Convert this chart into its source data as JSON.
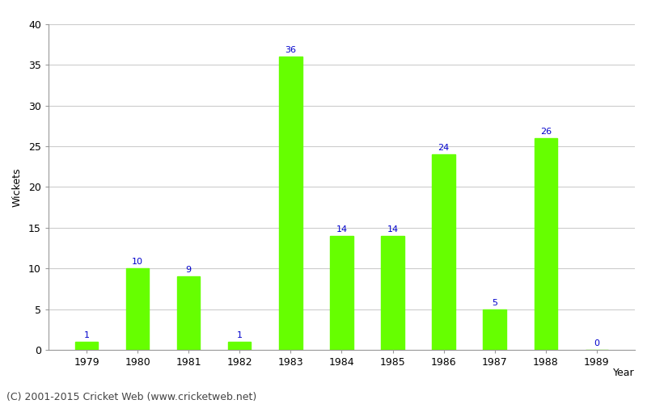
{
  "years": [
    "1979",
    "1980",
    "1981",
    "1982",
    "1983",
    "1984",
    "1985",
    "1986",
    "1987",
    "1988",
    "1989"
  ],
  "wickets": [
    1,
    10,
    9,
    1,
    36,
    14,
    14,
    24,
    5,
    26,
    0
  ],
  "bar_color": "#66ff00",
  "label_color": "#0000cc",
  "ylabel": "Wickets",
  "year_label": "Year",
  "ylim": [
    0,
    40
  ],
  "yticks": [
    0,
    5,
    10,
    15,
    20,
    25,
    30,
    35,
    40
  ],
  "background_color": "#ffffff",
  "grid_color": "#cccccc",
  "footer": "(C) 2001-2015 Cricket Web (www.cricketweb.net)",
  "label_fontsize": 8,
  "axis_fontsize": 9,
  "footer_fontsize": 9,
  "bar_width": 0.45
}
